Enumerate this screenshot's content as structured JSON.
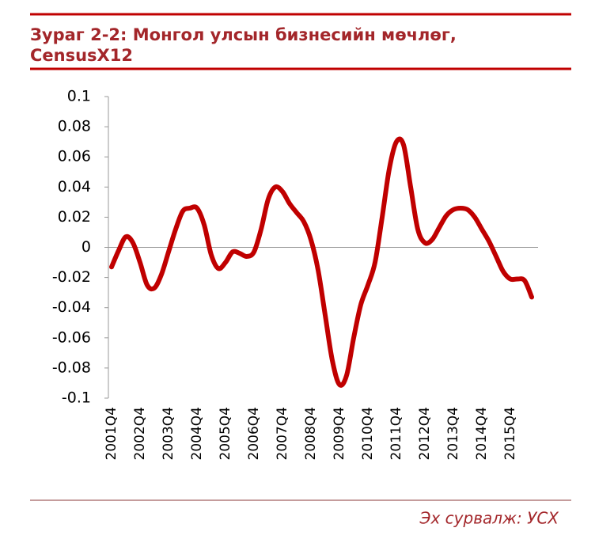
{
  "chart_data": {
    "type": "line",
    "title": "Зураг 2-2:  Монгол улсын бизнесийн мөчлөг,",
    "subtitle": "CensusX12",
    "source": "Эх сурвалж: УСХ",
    "categories": [
      "2001Q4",
      null,
      null,
      null,
      "2002Q4",
      null,
      null,
      null,
      "2003Q4",
      null,
      null,
      null,
      "2004Q4",
      null,
      null,
      null,
      "2005Q4",
      null,
      null,
      null,
      "2006Q4",
      null,
      null,
      null,
      "2007Q4",
      null,
      null,
      null,
      "2008Q4",
      null,
      null,
      null,
      "2009Q4",
      null,
      null,
      null,
      "2010Q4",
      null,
      null,
      null,
      "2011Q4",
      null,
      null,
      null,
      "2012Q4",
      null,
      null,
      null,
      "2013Q4",
      null,
      null,
      null,
      "2014Q4",
      null,
      null,
      null,
      "2015Q4",
      null,
      null,
      null
    ],
    "series": [
      {
        "name": "CensusX12",
        "color": "#c00000",
        "values": [
          -0.013,
          -0.002,
          0.007,
          0.003,
          -0.01,
          -0.025,
          -0.027,
          -0.018,
          -0.003,
          0.012,
          0.024,
          0.026,
          0.026,
          0.015,
          -0.005,
          -0.014,
          -0.01,
          -0.003,
          -0.004,
          -0.006,
          -0.003,
          0.012,
          0.032,
          0.04,
          0.037,
          0.029,
          0.023,
          0.017,
          0.005,
          -0.015,
          -0.045,
          -0.075,
          -0.091,
          -0.085,
          -0.06,
          -0.038,
          -0.025,
          -0.01,
          0.02,
          0.052,
          0.07,
          0.068,
          0.04,
          0.012,
          0.003,
          0.005,
          0.013,
          0.021,
          0.025,
          0.026,
          0.025,
          0.02,
          0.012,
          0.004,
          -0.006,
          -0.016,
          -0.021,
          -0.021,
          -0.022,
          -0.033
        ]
      }
    ],
    "ylim": [
      -0.1,
      0.1
    ],
    "yticks": [
      0.1,
      0.08,
      0.06,
      0.04,
      0.02,
      0,
      -0.02,
      -0.04,
      -0.06,
      -0.08,
      -0.1
    ]
  }
}
